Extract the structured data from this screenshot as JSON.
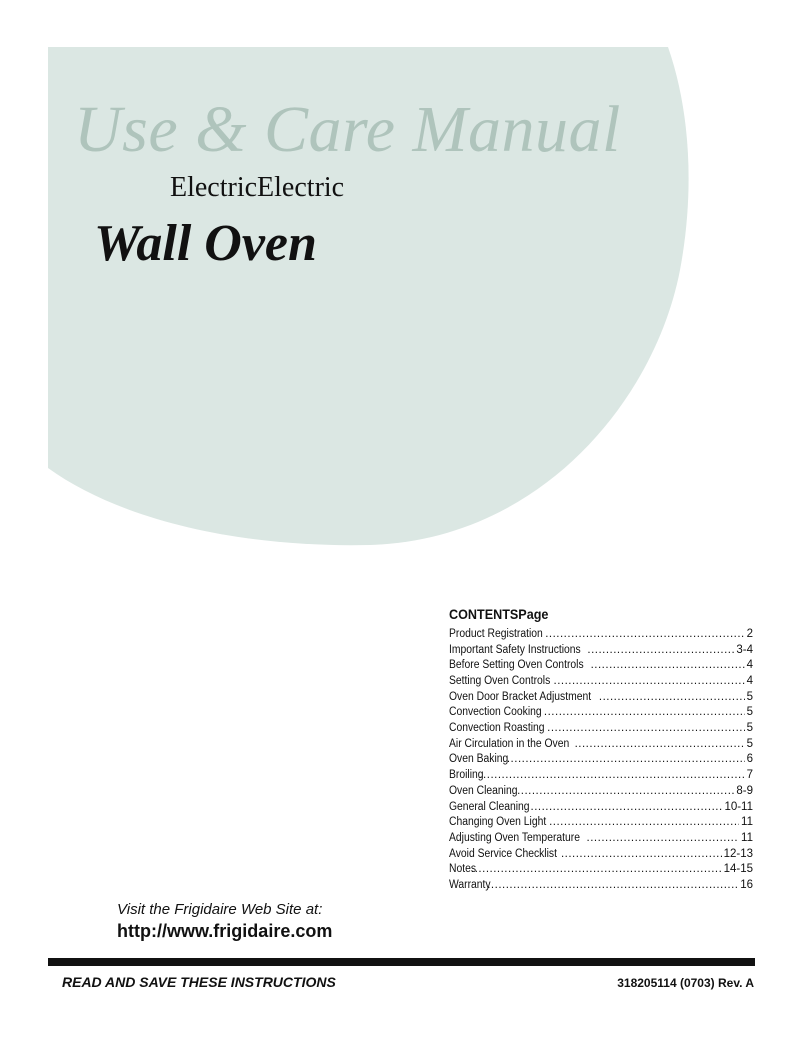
{
  "colors": {
    "background_shape": "#dbe7e3",
    "title": "#afc4bc",
    "text": "#111111"
  },
  "header": {
    "title": "Use & Care Manual",
    "subtitle": "ElectricElectric",
    "product": "Wall Oven"
  },
  "contents": {
    "heading": "CONTENTSPage",
    "items": [
      {
        "label": "Product Registration",
        "page": "2"
      },
      {
        "label": "Important Safety Instructions",
        "page": "3-4"
      },
      {
        "label": "Before Setting Oven Controls",
        "page": "4"
      },
      {
        "label": "Setting Oven Controls",
        "page": "4"
      },
      {
        "label": "Oven Door Bracket Adjustment",
        "page": "5"
      },
      {
        "label": "Convection Cooking",
        "page": "5"
      },
      {
        "label": "Convection Roasting",
        "page": "5"
      },
      {
        "label": "Air Circulation in the Oven",
        "page": "5"
      },
      {
        "label": "Oven Baking",
        "page": "6"
      },
      {
        "label": "Broiling",
        "page": "7"
      },
      {
        "label": "Oven Cleaning",
        "page": "8-9"
      },
      {
        "label": "General Cleaning",
        "page": "10-11"
      },
      {
        "label": "Changing Oven Light",
        "page": "11"
      },
      {
        "label": "Adjusting Oven Temperature",
        "page": "11"
      },
      {
        "label": "Avoid Service Checklist",
        "page": "12-13"
      },
      {
        "label": "Notes",
        "page": "14-15"
      },
      {
        "label": "Warranty",
        "page": "16"
      }
    ]
  },
  "website": {
    "prompt": "Visit the Frigidaire Web Site at:",
    "url": "http://www.frigidaire.com"
  },
  "footer": {
    "left": "READ AND SAVE THESE INSTRUCTIONS",
    "right": "318205114 (0703) Rev. A"
  }
}
